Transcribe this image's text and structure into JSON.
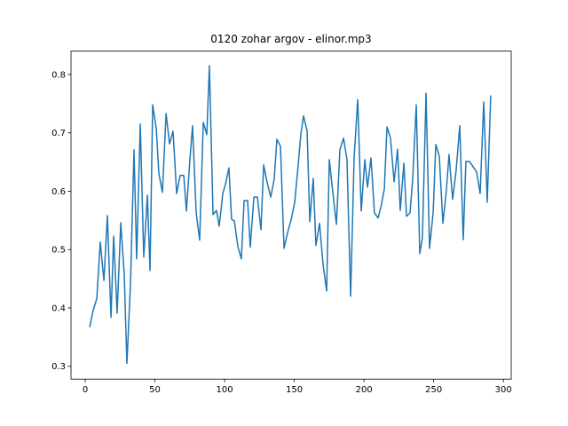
{
  "chart_data": {
    "type": "line",
    "title": "0120 zohar argov - elinor.mp3",
    "color": "#1f77b4",
    "x": [
      3.2,
      5.7,
      8.3,
      10.8,
      13.4,
      15.9,
      18.5,
      20.4,
      22.9,
      25.5,
      28.0,
      29.9,
      32.5,
      35.0,
      36.9,
      39.5,
      42.0,
      44.6,
      46.5,
      48.4,
      51.0,
      52.8,
      55.4,
      58.0,
      60.5,
      63.0,
      65.6,
      68.1,
      70.7,
      72.6,
      75.1,
      77.0,
      79.6,
      82.1,
      84.7,
      87.2,
      89.1,
      91.7,
      94.2,
      96.1,
      98.7,
      100.6,
      103.1,
      105.0,
      107.0,
      109.5,
      112.0,
      114.0,
      116.5,
      118.4,
      121.0,
      123.5,
      126.1,
      128.0,
      130.5,
      133.1,
      135.6,
      137.5,
      140.1,
      142.6,
      145.2,
      147.7,
      150.3,
      152.8,
      154.7,
      156.6,
      159.2,
      161.1,
      163.6,
      165.5,
      168.1,
      170.6,
      173.2,
      175.1,
      177.6,
      180.2,
      182.7,
      185.3,
      187.8,
      190.4,
      192.9,
      195.5,
      198.0,
      200.6,
      202.5,
      205.0,
      207.5,
      210.1,
      212.6,
      214.6,
      216.5,
      219.0,
      221.6,
      224.1,
      226.0,
      228.6,
      230.5,
      233.0,
      234.9,
      237.5,
      240.0,
      241.9,
      244.5,
      247.0,
      249.6,
      251.5,
      254.0,
      256.6,
      259.1,
      261.0,
      263.6,
      266.1,
      268.7,
      271.2,
      273.1,
      275.7,
      278.2,
      280.8,
      283.3,
      285.9,
      288.4,
      290.9
    ],
    "values": [
      0.367,
      0.396,
      0.416,
      0.513,
      0.447,
      0.558,
      0.384,
      0.523,
      0.391,
      0.546,
      0.457,
      0.305,
      0.442,
      0.671,
      0.484,
      0.715,
      0.487,
      0.593,
      0.464,
      0.748,
      0.707,
      0.631,
      0.598,
      0.733,
      0.681,
      0.703,
      0.596,
      0.627,
      0.627,
      0.566,
      0.654,
      0.712,
      0.563,
      0.516,
      0.718,
      0.697,
      0.815,
      0.56,
      0.567,
      0.54,
      0.596,
      0.612,
      0.64,
      0.552,
      0.549,
      0.505,
      0.484,
      0.584,
      0.584,
      0.504,
      0.59,
      0.59,
      0.534,
      0.645,
      0.615,
      0.59,
      0.621,
      0.689,
      0.677,
      0.502,
      0.529,
      0.551,
      0.581,
      0.645,
      0.698,
      0.729,
      0.703,
      0.548,
      0.622,
      0.507,
      0.545,
      0.475,
      0.429,
      0.654,
      0.599,
      0.543,
      0.671,
      0.691,
      0.654,
      0.42,
      0.657,
      0.757,
      0.566,
      0.654,
      0.607,
      0.657,
      0.563,
      0.554,
      0.578,
      0.604,
      0.71,
      0.691,
      0.616,
      0.672,
      0.567,
      0.648,
      0.557,
      0.563,
      0.619,
      0.748,
      0.493,
      0.52,
      0.768,
      0.502,
      0.563,
      0.68,
      0.66,
      0.545,
      0.602,
      0.663,
      0.586,
      0.636,
      0.712,
      0.517,
      0.651,
      0.651,
      0.642,
      0.633,
      0.596,
      0.753,
      0.581,
      0.764
    ],
    "xlim": [
      -10.2,
      305.6
    ],
    "xticks": [
      0,
      50,
      100,
      150,
      200,
      250,
      300
    ],
    "ylim": [
      0.278,
      0.84
    ],
    "yticks": [
      0.3,
      0.4,
      0.5,
      0.6,
      0.7,
      0.8
    ]
  }
}
